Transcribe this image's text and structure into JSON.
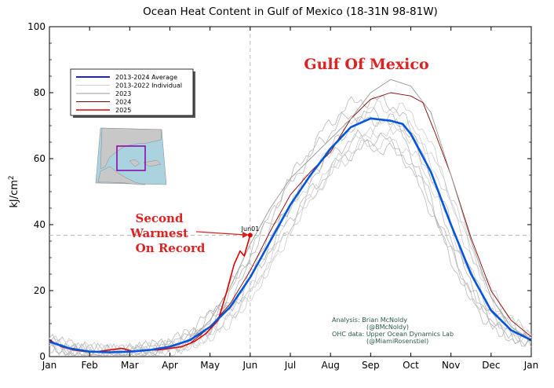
{
  "chart_data": {
    "type": "line",
    "title": "Ocean Heat Content in Gulf of Mexico (18-31N 98-81W)",
    "ylabel": "kJ/cm",
    "ylabel_superscript": "2",
    "xlabel": "",
    "ylim": [
      0,
      100
    ],
    "xlim_months": [
      0,
      12
    ],
    "yticks": [
      "0",
      "20",
      "40",
      "60",
      "80",
      "100"
    ],
    "ytick_values": [
      0,
      20,
      40,
      60,
      80,
      100
    ],
    "xticks": [
      "Jan",
      "Feb",
      "Mar",
      "Apr",
      "May",
      "Jun",
      "Jul",
      "Aug",
      "Sep",
      "Oct",
      "Nov",
      "Dec",
      "Jan"
    ],
    "grid": false,
    "reference_lines": [
      {
        "axis": "x",
        "value_month": 5.0,
        "style": "dashed"
      },
      {
        "axis": "y",
        "value": 36.8,
        "style": "dashed"
      }
    ],
    "legend": {
      "placement": "top-left",
      "entries": [
        {
          "label": "2013-2024 Average",
          "color": "#0000cc"
        },
        {
          "label": "2013-2022 Individual",
          "color": "#cfcfcf"
        },
        {
          "label": "2023",
          "color": "#999999"
        },
        {
          "label": "2024",
          "color": "#8b0000"
        },
        {
          "label": "2025",
          "color": "#dd0000"
        }
      ]
    },
    "series": [
      {
        "name": "2013-2024 Average",
        "color": "#0055dd",
        "x": [
          0,
          0.5,
          1,
          1.5,
          2,
          2.5,
          3,
          3.5,
          4,
          4.5,
          5,
          5.5,
          6,
          6.5,
          7,
          7.5,
          8,
          8.5,
          8.8,
          9,
          9.5,
          10,
          10.5,
          11,
          11.5,
          12
        ],
        "y": [
          4.5,
          2.5,
          1.5,
          1.3,
          1.5,
          2.0,
          3.0,
          5.0,
          9.0,
          15.0,
          24.0,
          35.0,
          46.0,
          55.0,
          63.0,
          69.5,
          72.2,
          71.5,
          70.5,
          67.5,
          56.0,
          40.0,
          25.0,
          14.0,
          8.0,
          5.0
        ]
      },
      {
        "name": "2025",
        "color": "#dd0000",
        "x": [
          0,
          0.3,
          0.6,
          0.9,
          1.2,
          1.5,
          1.8,
          2.1,
          2.4,
          2.7,
          3.0,
          3.3,
          3.6,
          3.9,
          4.2,
          4.4,
          4.6,
          4.75,
          4.85,
          5.0
        ],
        "y": [
          5.0,
          3.0,
          2.0,
          1.5,
          1.5,
          2.0,
          2.5,
          1.5,
          2.0,
          2.0,
          2.5,
          3.0,
          4.5,
          7.0,
          11.0,
          19.0,
          28.0,
          32.0,
          30.5,
          36.8
        ]
      },
      {
        "name": "2024",
        "color": "#8b0000",
        "x": [
          3.5,
          4.0,
          4.5,
          5.0,
          5.5,
          6.0,
          6.5,
          7.0,
          7.5,
          8.0,
          8.5,
          9.0,
          9.3,
          9.6,
          10.0,
          10.5,
          11.0,
          11.5,
          12.0
        ],
        "y": [
          4.0,
          9.0,
          16.0,
          26.0,
          38.0,
          49.0,
          56.0,
          62.0,
          72.0,
          78.0,
          80.0,
          79.0,
          77.0,
          68.0,
          55.0,
          36.0,
          20.0,
          11.0,
          6.0
        ]
      },
      {
        "name": "2023",
        "color": "#999999",
        "x": [
          3.5,
          4.0,
          4.5,
          5.0,
          5.5,
          6.0,
          6.5,
          7.0,
          7.5,
          8.0,
          8.5,
          9.0,
          9.5,
          10.0,
          10.5,
          11.0,
          11.5,
          12.0
        ],
        "y": [
          5.0,
          11.0,
          21.0,
          34.0,
          45.0,
          54.0,
          60.0,
          66.0,
          72.0,
          80.0,
          84.0,
          82.0,
          74.0,
          55.0,
          35.0,
          18.0,
          9.0,
          5.0
        ]
      }
    ],
    "annotations": [
      {
        "text": "Jun01",
        "x_month": 5.0,
        "y": 36.8
      },
      {
        "text": "Second Warmest On Record",
        "lines": [
          "Second",
          "Warmest",
          "On Record"
        ],
        "color": "#dd2222"
      },
      {
        "text": "Gulf Of Mexico",
        "color": "#dd2222"
      }
    ],
    "credits": [
      "Analysis: Brian McNoldy",
      "(@BMcNoldy)",
      "OHC data: Upper Ocean Dynamics Lab",
      "(@MiamiRosenstiel)"
    ]
  }
}
